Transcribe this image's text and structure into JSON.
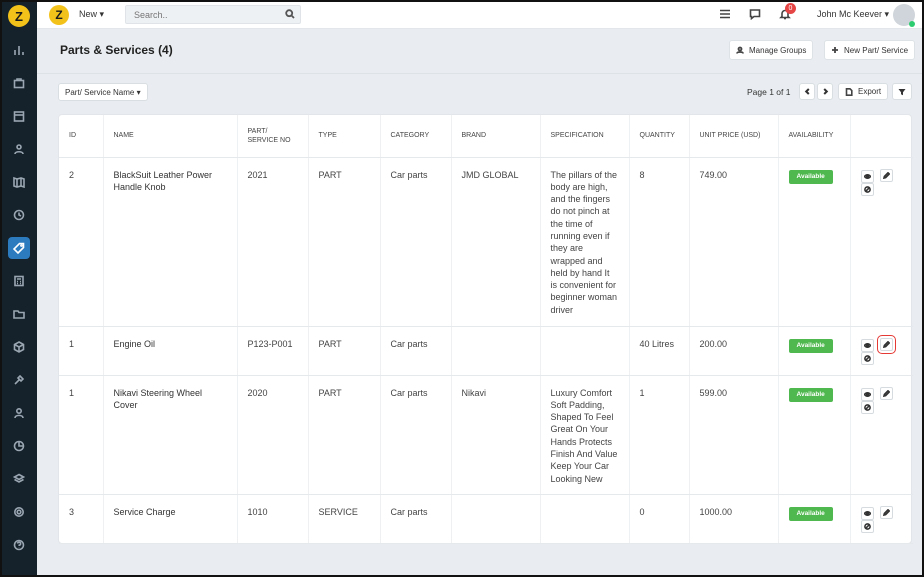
{
  "topbar": {
    "new_label": "New ▾",
    "search_placeholder": "Search..",
    "notification_count": "0",
    "user_name": "John Mc Keever ▾"
  },
  "header": {
    "title": "Parts & Services (4)",
    "manage_groups": "Manage Groups",
    "new_part": "New Part/ Service"
  },
  "toolbar": {
    "filter_label": "Part/ Service Name ▾",
    "page_text": "Page 1 of 1",
    "export_label": "Export"
  },
  "table": {
    "headers": [
      "ID",
      "NAME",
      "PART/ SERVICE NO",
      "TYPE",
      "CATEGORY",
      "BRAND",
      "SPECIFICATION",
      "QUANTITY",
      "UNIT PRICE (USD)",
      "AVAILABILITY",
      ""
    ],
    "rows": [
      {
        "id": "2",
        "name": "BlackSuit Leather Power Handle Knob",
        "part_no": "2021",
        "type": "PART",
        "category": "Car parts",
        "brand": "JMD GLOBAL",
        "specification": "The pillars of the body are high, and the fingers do not pinch at the time of running even if they are wrapped and held by hand It is convenient for beginner woman driver",
        "quantity": "8",
        "unit_price": "749.00",
        "availability": "Available"
      },
      {
        "id": "1",
        "name": "Engine Oil",
        "part_no": "P123-P001",
        "type": "PART",
        "category": "Car parts",
        "brand": "",
        "specification": "",
        "quantity": "40 Litres",
        "unit_price": "200.00",
        "availability": "Available"
      },
      {
        "id": "1",
        "name": "Nikavi Steering Wheel Cover",
        "part_no": "2020",
        "type": "PART",
        "category": "Car parts",
        "brand": "Nikavi",
        "specification": "Luxury Comfort Soft Padding, Shaped To Feel Great On Your Hands Protects Finish And Value Keep Your Car Looking New",
        "quantity": "1",
        "unit_price": "599.00",
        "availability": "Available"
      },
      {
        "id": "3",
        "name": "Service Charge",
        "part_no": "1010",
        "type": "SERVICE",
        "category": "Car parts",
        "brand": "",
        "specification": "",
        "quantity": "0",
        "unit_price": "1000.00",
        "availability": "Available"
      }
    ]
  },
  "colors": {
    "sidebar_bg": "#15212b",
    "active_icon_bg": "#2c7bbf",
    "available_green": "#4fb84f",
    "highlight_red": "#e53935"
  },
  "sidebar_icons": [
    "chart-icon",
    "briefcase-icon",
    "calendar-icon",
    "users-icon",
    "map-icon",
    "clock-icon",
    "tag-icon",
    "calculator-icon",
    "folder-icon",
    "box-icon",
    "tools-icon",
    "person-icon",
    "pie-icon",
    "layers-icon",
    "settings-icon",
    "help-icon"
  ]
}
